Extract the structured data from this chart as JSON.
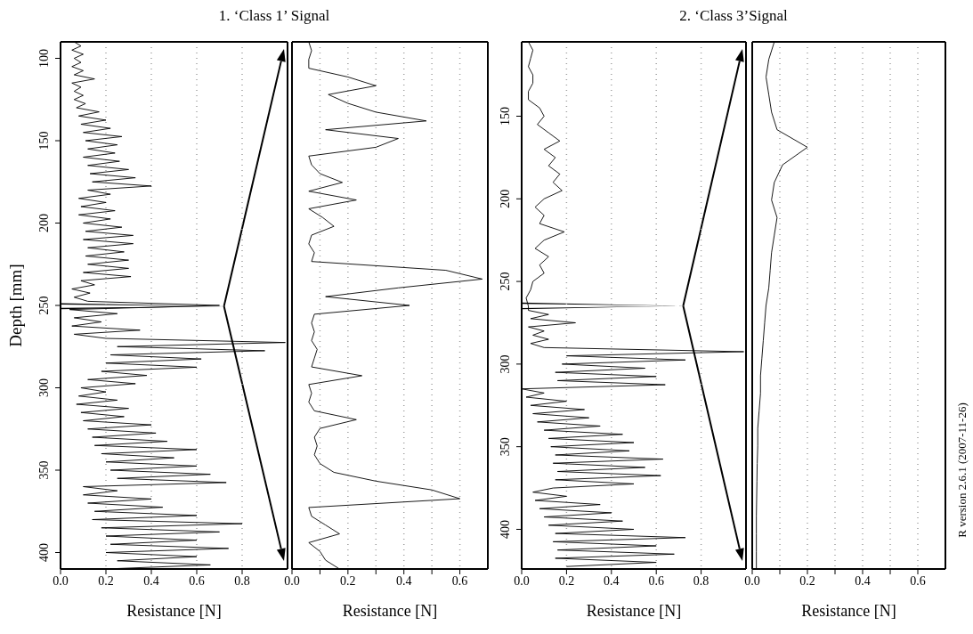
{
  "chart_data": [
    {
      "type": "line",
      "title": "1. ‘Class 1’ Signal",
      "xlabel": "Resistance [N]",
      "ylabel": "Depth [mm]",
      "orientation": "horizontal",
      "grid": "x",
      "xlim": [
        0,
        1
      ],
      "ylim": [
        410,
        90
      ],
      "xticks": [
        {
          "value": 0,
          "label": "0.0"
        },
        {
          "value": 0.2,
          "label": "0.2"
        },
        {
          "value": 0.4,
          "label": "0.4"
        },
        {
          "value": 0.6,
          "label": "0.6"
        },
        {
          "value": 0.8,
          "label": "0.8"
        }
      ],
      "yticks": [
        100,
        150,
        200,
        250,
        300,
        350,
        400
      ],
      "x": [
        90,
        92.5,
        95,
        97.5,
        100,
        102.5,
        105,
        107.5,
        110,
        112.5,
        115,
        117.5,
        120,
        122.5,
        125,
        127.5,
        130,
        132.5,
        135,
        137.5,
        140,
        142.5,
        145,
        147.5,
        150,
        152.5,
        155,
        157.5,
        160,
        162.5,
        165,
        167.5,
        170,
        172.5,
        175,
        177.5,
        180,
        182.5,
        185,
        187.5,
        190,
        192.5,
        195,
        197.5,
        200,
        202.5,
        205,
        207.5,
        210,
        212.5,
        215,
        217.5,
        220,
        222.5,
        225,
        227.5,
        230,
        232.5,
        235,
        237.5,
        240,
        242.5,
        245,
        247.5,
        250,
        252.5,
        255,
        257.5,
        260,
        262.5,
        265,
        267.5,
        270,
        272.5,
        275,
        277.5,
        280,
        282.5,
        285,
        287.5,
        290,
        292.5,
        295,
        297.5,
        300,
        302.5,
        305,
        307.5,
        310,
        312.5,
        315,
        317.5,
        320,
        322.5,
        325,
        327.5,
        330,
        332.5,
        335,
        337.5,
        340,
        342.5,
        345,
        347.5,
        350,
        352.5,
        355,
        357.5,
        360,
        362.5,
        365,
        367.5,
        370,
        372.5,
        375,
        377.5,
        380,
        382.5,
        385,
        387.5,
        390,
        392.5,
        395,
        397.5,
        400,
        402.5,
        405,
        407.5,
        410
      ],
      "series": [
        {
          "color": "#000000",
          "values": [
            0.06,
            0.09,
            0.05,
            0.1,
            0.06,
            0.09,
            0.05,
            0.1,
            0.06,
            0.15,
            0.05,
            0.09,
            0.06,
            0.1,
            0.06,
            0.11,
            0.07,
            0.17,
            0.08,
            0.2,
            0.09,
            0.22,
            0.1,
            0.27,
            0.11,
            0.25,
            0.12,
            0.24,
            0.1,
            0.26,
            0.12,
            0.3,
            0.13,
            0.33,
            0.14,
            0.4,
            0.12,
            0.22,
            0.08,
            0.2,
            0.09,
            0.24,
            0.08,
            0.22,
            0.1,
            0.27,
            0.11,
            0.32,
            0.1,
            0.32,
            0.12,
            0.28,
            0.11,
            0.3,
            0.12,
            0.3,
            0.1,
            0.31,
            0.09,
            0.15,
            0.05,
            0.13,
            0.06,
            0.12,
            0.7,
            0.04,
            0.25,
            0.06,
            0.18,
            0.05,
            0.35,
            0.06,
            0.2,
            0.99,
            0.25,
            0.9,
            0.22,
            0.62,
            0.2,
            0.6,
            0.18,
            0.38,
            0.12,
            0.33,
            0.09,
            0.2,
            0.08,
            0.25,
            0.07,
            0.3,
            0.09,
            0.28,
            0.1,
            0.4,
            0.12,
            0.42,
            0.14,
            0.47,
            0.15,
            0.6,
            0.18,
            0.5,
            0.2,
            0.6,
            0.22,
            0.66,
            0.25,
            0.73,
            0.1,
            0.25,
            0.1,
            0.4,
            0.12,
            0.45,
            0.15,
            0.6,
            0.14,
            0.8,
            0.18,
            0.7,
            0.2,
            0.6,
            0.22,
            0.74,
            0.2,
            0.6,
            0.25,
            0.66,
            0.2
          ]
        }
      ]
    },
    {
      "type": "line",
      "xlabel": "Resistance [N]",
      "orientation": "horizontal",
      "grid": "x",
      "tick_labels": "x",
      "xlim": [
        0,
        0.7
      ],
      "xticks": [
        {
          "value": 0,
          "label": "0.0"
        },
        {
          "value": 0.1,
          "label": null
        },
        {
          "value": 0.2,
          "label": "0.2"
        },
        {
          "value": 0.3,
          "label": null
        },
        {
          "value": 0.4,
          "label": "0.4"
        },
        {
          "value": 0.5,
          "label": null
        },
        {
          "value": 0.6,
          "label": "0.6"
        }
      ],
      "categories": [
        null,
        null,
        null,
        null,
        null,
        null,
        null,
        null,
        null,
        null,
        null,
        null,
        null,
        null,
        null,
        null,
        null,
        null,
        null,
        null,
        null,
        null,
        null,
        null,
        null,
        null,
        null,
        null,
        null,
        null,
        null,
        null,
        null,
        null,
        null,
        null,
        null,
        null,
        null,
        null,
        null,
        null,
        null,
        null,
        null,
        null,
        null,
        null,
        null,
        null,
        null,
        null,
        null,
        null,
        null,
        null,
        null,
        null,
        null,
        null,
        null
      ],
      "series": [
        {
          "color": "#000000",
          "values": [
            0.06,
            0.07,
            0.06,
            0.06,
            0.2,
            0.3,
            0.13,
            0.2,
            0.3,
            0.48,
            0.12,
            0.38,
            0.3,
            0.06,
            0.07,
            0.1,
            0.18,
            0.06,
            0.23,
            0.06,
            0.11,
            0.15,
            0.07,
            0.06,
            0.08,
            0.07,
            0.55,
            0.68,
            0.38,
            0.12,
            0.42,
            0.08,
            0.07,
            0.08,
            0.07,
            0.09,
            0.08,
            0.07,
            0.25,
            0.06,
            0.07,
            0.06,
            0.08,
            0.23,
            0.1,
            0.08,
            0.09,
            0.08,
            0.1,
            0.15,
            0.3,
            0.5,
            0.6,
            0.06,
            0.07,
            0.12,
            0.17,
            0.06,
            0.1,
            0.12,
            0.17
          ]
        }
      ]
    },
    {
      "type": "line",
      "title": "2. ‘Class 3’Signal",
      "xlabel": "Resistance [N]",
      "orientation": "horizontal",
      "grid": "x",
      "xlim": [
        0,
        1
      ],
      "ylim": [
        424,
        105
      ],
      "xticks": [
        {
          "value": 0,
          "label": "0.0"
        },
        {
          "value": 0.2,
          "label": "0.2"
        },
        {
          "value": 0.4,
          "label": "0.4"
        },
        {
          "value": 0.6,
          "label": "0.6"
        },
        {
          "value": 0.8,
          "label": "0.8"
        }
      ],
      "yticks": [
        150,
        200,
        250,
        300,
        350,
        400
      ],
      "x": [
        105,
        110,
        115,
        120,
        125,
        130,
        135,
        140,
        145,
        150,
        155,
        160,
        165,
        170,
        175,
        180,
        185,
        190,
        195,
        200,
        205,
        210,
        215,
        220,
        225,
        230,
        235,
        240,
        245,
        250,
        255,
        260,
        265,
        267.5,
        270,
        272.5,
        275,
        277.5,
        280,
        282.5,
        285,
        287.5,
        290,
        292.5,
        295,
        297.5,
        300,
        302.5,
        305,
        307.5,
        310,
        312.5,
        315,
        317.5,
        320,
        322.5,
        325,
        327.5,
        330,
        332.5,
        335,
        337.5,
        340,
        342.5,
        345,
        347.5,
        350,
        352.5,
        355,
        357.5,
        360,
        362.5,
        365,
        367.5,
        370,
        372.5,
        375,
        377.5,
        380,
        382.5,
        385,
        387.5,
        390,
        392.5,
        395,
        397.5,
        400,
        402.5,
        405,
        407.5,
        410,
        412.5,
        415,
        417.5,
        420,
        422.5
      ],
      "series": [
        {
          "color": "#000000",
          "values": [
            0.03,
            0.05,
            0.04,
            0.03,
            0.05,
            0.05,
            0.03,
            0.03,
            0.08,
            0.1,
            0.07,
            0.12,
            0.17,
            0.1,
            0.15,
            0.12,
            0.17,
            0.14,
            0.18,
            0.1,
            0.06,
            0.1,
            0.08,
            0.19,
            0.1,
            0.06,
            0.12,
            0.08,
            0.1,
            0.05,
            0.04,
            0.02,
            0.03,
            0.03,
            0.12,
            0.04,
            0.24,
            0.03,
            0.1,
            0.05,
            0.12,
            0.04,
            0.1,
            0.99,
            0.2,
            0.73,
            0.18,
            0.55,
            0.15,
            0.6,
            0.16,
            0.64,
            0,
            0.1,
            0.02,
            0.2,
            0.04,
            0.28,
            0.05,
            0.3,
            0.07,
            0.35,
            0.1,
            0.45,
            0.12,
            0.5,
            0.13,
            0.48,
            0.15,
            0.63,
            0.14,
            0.55,
            0.16,
            0.62,
            0.15,
            0.5,
            0.14,
            0.05,
            0.2,
            0.06,
            0.35,
            0.08,
            0.4,
            0.1,
            0.45,
            0.12,
            0.5,
            0.15,
            0.73,
            0.14,
            0.6,
            0.16,
            0.68,
            0.15,
            0.6,
            0.2
          ]
        }
      ]
    },
    {
      "type": "line",
      "xlabel": "Resistance [N]",
      "orientation": "horizontal",
      "grid": "x",
      "tick_labels": "x",
      "xlim": [
        0,
        0.7
      ],
      "xticks": [
        {
          "value": 0,
          "label": "0.0"
        },
        {
          "value": 0.1,
          "label": null
        },
        {
          "value": 0.2,
          "label": "0.2"
        },
        {
          "value": 0.3,
          "label": null
        },
        {
          "value": 0.4,
          "label": "0.4"
        },
        {
          "value": 0.5,
          "label": null
        },
        {
          "value": 0.6,
          "label": "0.6"
        }
      ],
      "categories": [
        null,
        null,
        null,
        null,
        null,
        null,
        null,
        null,
        null,
        null,
        null,
        null,
        null,
        null,
        null,
        null,
        null,
        null,
        null,
        null,
        null,
        null,
        null,
        null,
        null,
        null,
        null,
        null,
        null,
        null,
        null
      ],
      "annotations": [
        "R version 2.6.1 (2007-11-26)"
      ],
      "series": [
        {
          "color": "#000000",
          "values": [
            0.08,
            0.06,
            0.05,
            0.06,
            0.07,
            0.09,
            0.2,
            0.11,
            0.08,
            0.07,
            0.09,
            0.08,
            0.07,
            0.065,
            0.06,
            0.05,
            0.045,
            0.04,
            0.035,
            0.03,
            0.03,
            0.025,
            0.02,
            0.02,
            0.018,
            0.017,
            0.016,
            0.015,
            0.015,
            0.015,
            0.015
          ]
        }
      ]
    }
  ]
}
